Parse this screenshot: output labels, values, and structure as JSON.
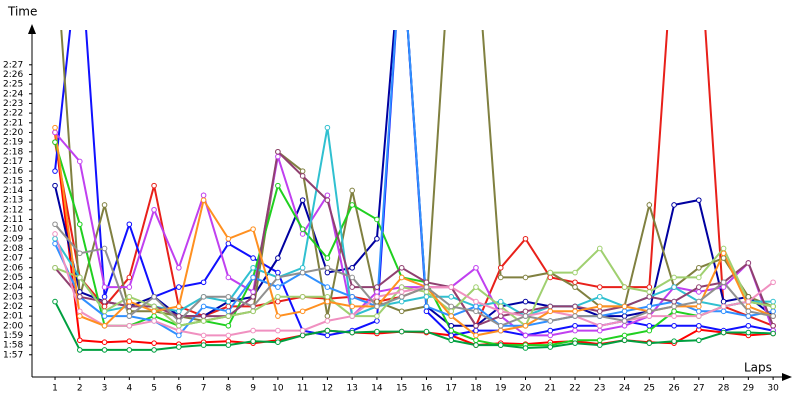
{
  "chart_data": {
    "type": "line",
    "y_label": "Time",
    "x_label": "Laps",
    "x": [
      1,
      2,
      3,
      4,
      5,
      6,
      7,
      8,
      9,
      10,
      11,
      12,
      13,
      14,
      15,
      16,
      17,
      18,
      19,
      20,
      21,
      22,
      23,
      24,
      25,
      26,
      27,
      28,
      29,
      30
    ],
    "xlim": [
      0.07,
      30.48
    ],
    "xticks": [
      1,
      2,
      3,
      4,
      5,
      6,
      7,
      8,
      9,
      10,
      11,
      12,
      13,
      14,
      15,
      16,
      17,
      18,
      19,
      20,
      21,
      22,
      23,
      24,
      25,
      26,
      27,
      28,
      29,
      30
    ],
    "ylim": [
      114.7,
      150.6
    ],
    "yticks": [
      {
        "value": 117,
        "label": "1:57"
      },
      {
        "value": 118,
        "label": "1:58"
      },
      {
        "value": 119,
        "label": "1:59"
      },
      {
        "value": 120,
        "label": "2:00"
      },
      {
        "value": 121,
        "label": "2:01"
      },
      {
        "value": 122,
        "label": "2:02"
      },
      {
        "value": 123,
        "label": "2:03"
      },
      {
        "value": 124,
        "label": "2:04"
      },
      {
        "value": 125,
        "label": "2:05"
      },
      {
        "value": 126,
        "label": "2:06"
      },
      {
        "value": 127,
        "label": "2:07"
      },
      {
        "value": 128,
        "label": "2:08"
      },
      {
        "value": 129,
        "label": "2:09"
      },
      {
        "value": 130,
        "label": "2:10"
      },
      {
        "value": 131,
        "label": "2:11"
      },
      {
        "value": 132,
        "label": "2:12"
      },
      {
        "value": 133,
        "label": "2:13"
      },
      {
        "value": 134,
        "label": "2:14"
      },
      {
        "value": 135,
        "label": "2:15"
      },
      {
        "value": 136,
        "label": "2:16"
      },
      {
        "value": 137,
        "label": "2:17"
      },
      {
        "value": 138,
        "label": "2:18"
      },
      {
        "value": 139,
        "label": "2:19"
      },
      {
        "value": 140,
        "label": "2:20"
      },
      {
        "value": 141,
        "label": "2:21"
      },
      {
        "value": 142,
        "label": "2:22"
      },
      {
        "value": 143,
        "label": "2:23"
      },
      {
        "value": 144,
        "label": "2:24"
      },
      {
        "value": 145,
        "label": "2:25"
      },
      {
        "value": 146,
        "label": "2:26"
      },
      {
        "value": 147,
        "label": "2:27"
      }
    ],
    "series": [
      {
        "color": "#ff0000",
        "values": [
          140,
          118.5,
          118.3,
          118.4,
          118.2,
          118.1,
          118.3,
          118.4,
          118.2,
          118.5,
          119,
          119.5,
          119.3,
          119.2,
          119.4,
          119.3,
          119,
          118,
          118.2,
          118.1,
          118.3,
          118.4,
          118.1,
          118.5,
          118.3,
          118.2,
          119.6,
          119.3,
          119,
          119.2
        ]
      },
      {
        "color": "#e8201a",
        "values": [
          139,
          125,
          122,
          125,
          134.5,
          122,
          121,
          122,
          122,
          122.5,
          123,
          122.8,
          123,
          122.5,
          123,
          124,
          124,
          120,
          126,
          129,
          125,
          124.5,
          124,
          124,
          124,
          161,
          161,
          122,
          121,
          120
        ]
      },
      {
        "color": "#1010ff",
        "values": [
          136,
          160,
          123,
          130.5,
          123,
          124,
          124.5,
          128.5,
          127,
          125.5,
          119.5,
          119,
          119.5,
          120.5,
          160,
          121.5,
          119,
          119.5,
          119.5,
          119,
          119.5,
          120,
          120,
          120.5,
          120,
          120,
          120,
          119.5,
          120,
          119.5
        ]
      },
      {
        "color": "#0000a0",
        "values": [
          134.5,
          123.5,
          122.5,
          122,
          123,
          121,
          121,
          122.5,
          123,
          127,
          133,
          125.5,
          126,
          129,
          160,
          122,
          120,
          120,
          122,
          122.5,
          122,
          122,
          121,
          121,
          121.5,
          132.5,
          133,
          122.5,
          123,
          121
        ]
      },
      {
        "color": "#808040",
        "values": [
          160,
          123,
          132.5,
          121.5,
          121.5,
          121,
          120.5,
          121,
          121.5,
          138,
          136,
          121,
          134,
          122.5,
          121.5,
          122,
          161,
          160,
          125,
          125,
          125.5,
          124,
          122,
          122,
          132.5,
          124,
          126,
          127,
          123,
          122
        ]
      },
      {
        "color": "#c040f0",
        "values": [
          140,
          137,
          124,
          124,
          132,
          126,
          133.5,
          125,
          123.5,
          137.5,
          129.5,
          133.5,
          121,
          123.5,
          124,
          124,
          124,
          126,
          121,
          119,
          119,
          119.5,
          119.5,
          120,
          121,
          124,
          123.5,
          124,
          126.5,
          119.5
        ]
      },
      {
        "color": "#20d020",
        "values": [
          139,
          130.5,
          120,
          120,
          121,
          120,
          120.5,
          120,
          125,
          134.5,
          130,
          127,
          132.5,
          131,
          125,
          124.5,
          119.5,
          118.5,
          118,
          118,
          118,
          118.5,
          118.5,
          119,
          119.5,
          121.5,
          121,
          122,
          122.5,
          122
        ]
      },
      {
        "color": "#00a040",
        "values": [
          122.5,
          117.5,
          117.5,
          117.5,
          117.5,
          117.8,
          118,
          118,
          118.4,
          118.3,
          119,
          119.5,
          119.3,
          119.4,
          119.4,
          119.4,
          118.5,
          118,
          118,
          117.7,
          117.8,
          118.2,
          118,
          118.5,
          118.2,
          118.4,
          118.5,
          119.3,
          119.3,
          119.2
        ]
      },
      {
        "color": "#30c0d0",
        "values": [
          129,
          125,
          121.5,
          122,
          122,
          121.5,
          123,
          122.5,
          126,
          125,
          126,
          140.5,
          121,
          122,
          122.5,
          123,
          123,
          122,
          122.5,
          121,
          122,
          122,
          123,
          122,
          123,
          124,
          122.5,
          122,
          122.5,
          122.5
        ]
      },
      {
        "color": "#3090ff",
        "values": [
          128.5,
          123,
          121,
          121,
          120.5,
          119,
          122,
          121.5,
          125,
          124,
          125.5,
          124,
          123,
          122,
          160,
          122,
          121,
          122,
          120,
          120,
          120.5,
          121,
          121,
          121.5,
          122,
          122.5,
          121.5,
          121.5,
          121,
          121.5
        ]
      },
      {
        "color": "#904070",
        "values": [
          126,
          123,
          122.5,
          122,
          122,
          121,
          121,
          121,
          123,
          138,
          135.5,
          133,
          124,
          124,
          126,
          124.5,
          124,
          120,
          121,
          121.5,
          122,
          122,
          121.5,
          122,
          123,
          122.5,
          124,
          124.5,
          126.5,
          120
        ]
      },
      {
        "color": "#a0d070",
        "values": [
          126,
          125,
          121.5,
          123,
          122,
          120,
          120.5,
          121,
          121.5,
          123,
          123,
          123,
          121,
          121,
          124,
          123.5,
          121.5,
          124,
          122,
          120,
          125.5,
          125.5,
          128,
          124,
          123.5,
          125,
          125,
          128,
          122.5,
          122
        ]
      },
      {
        "color": "#f090c0",
        "values": [
          129.5,
          121.5,
          120,
          120,
          120.5,
          119.5,
          119,
          119,
          119.5,
          119.5,
          119.5,
          120.5,
          121,
          123,
          123.5,
          124,
          124,
          122.5,
          121.5,
          121,
          121.5,
          121,
          120,
          120.5,
          121,
          121,
          121,
          122,
          122.5,
          124.5
        ]
      },
      {
        "color": "#ff9020",
        "values": [
          140.5,
          121,
          120,
          122.5,
          121.5,
          122,
          133,
          129,
          130,
          121,
          121.5,
          122.5,
          122,
          122,
          125,
          124,
          121,
          119,
          119.5,
          120,
          121.5,
          121.5,
          122,
          122,
          121.5,
          122,
          122,
          127.5,
          122,
          121
        ]
      },
      {
        "color": "#909090",
        "values": [
          130.5,
          127.5,
          128,
          121,
          123,
          120.5,
          123,
          123,
          122,
          125,
          125.5,
          126,
          125,
          122,
          123,
          124,
          122,
          121.5,
          120,
          121,
          120.5,
          121,
          121,
          120.5,
          121.5,
          122,
          122.5,
          124.5,
          121.5,
          121
        ]
      }
    ]
  }
}
